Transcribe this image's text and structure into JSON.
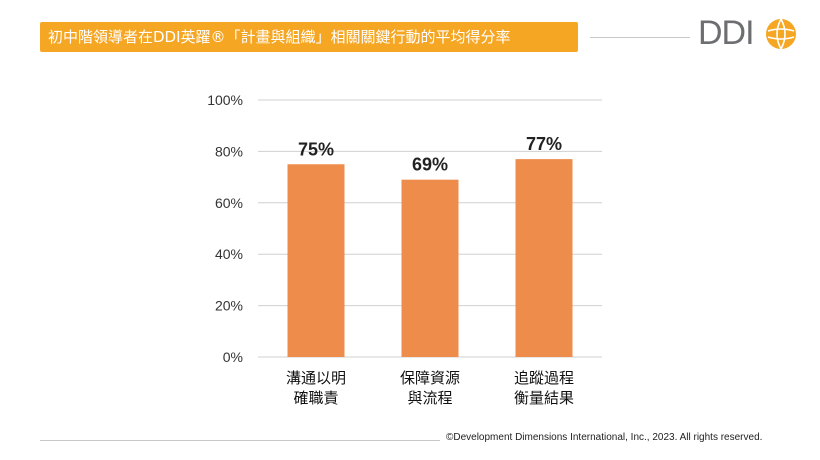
{
  "header": {
    "title": "初中階領導者在DDI英躍®「計畫與組織」相關關鍵行動的平均得分率",
    "logo_text": "DDI",
    "accent_color": "#f5a623"
  },
  "footer": {
    "copyright": "©Development Dimensions International, Inc., 2023. All rights reserved."
  },
  "chart_data": {
    "type": "bar",
    "categories": [
      [
        "溝通以明",
        "確職責"
      ],
      [
        "保障資源",
        "與流程"
      ],
      [
        "追蹤過程",
        "衡量結果"
      ]
    ],
    "values": [
      75,
      69,
      77
    ],
    "data_labels": [
      "75%",
      "69%",
      "77%"
    ],
    "y_ticks": [
      "0%",
      "20%",
      "40%",
      "60%",
      "80%",
      "100%"
    ],
    "ylim": [
      0,
      100
    ],
    "grid": true,
    "bar_color": "#ee8c4c"
  }
}
